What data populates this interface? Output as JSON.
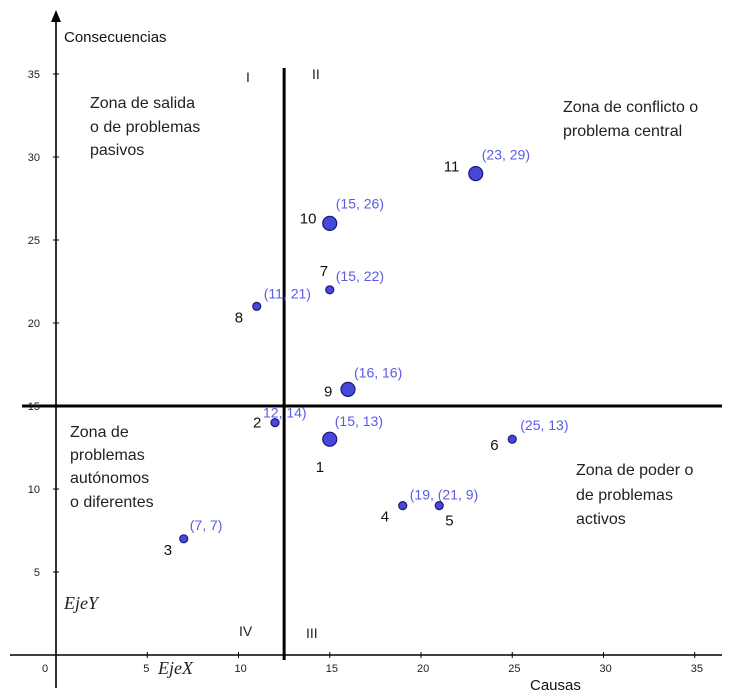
{
  "chart_data": {
    "type": "scatter",
    "title": "",
    "xlabel": "Causas",
    "ylabel": "Consecuencias",
    "xlim": [
      0,
      37.5
    ],
    "ylim": [
      0,
      37
    ],
    "x_ticks": [
      "0",
      "5",
      "10",
      "15",
      "20",
      "25",
      "30",
      "35"
    ],
    "y_ticks": [
      "5",
      "10",
      "15",
      "20",
      "25",
      "30",
      "35"
    ],
    "x_axis_name": "EjeX",
    "y_axis_name": "EjeY",
    "divider_x": 12.5,
    "divider_y": 15,
    "quadrants": [
      "I",
      "II",
      "III",
      "IV"
    ],
    "zones": [
      {
        "id": "salida",
        "lines": [
          "Zona de salida",
          "o de problemas",
          "pasivos"
        ]
      },
      {
        "id": "conflicto",
        "lines": [
          "Zona de conflicto o",
          "problema central"
        ]
      },
      {
        "id": "autonomos",
        "lines": [
          "Zona de",
          "problemas",
          "autónomos",
          "o diferentes"
        ]
      },
      {
        "id": "poder",
        "lines": [
          "Zona de poder o",
          "de problemas",
          "activos"
        ]
      }
    ],
    "points": [
      {
        "id": "1",
        "x": 15,
        "y": 13,
        "size": "large",
        "coord_label": "(15, 13)"
      },
      {
        "id": "2",
        "x": 12,
        "y": 14,
        "size": "small",
        "coord_label": "12, 14)"
      },
      {
        "id": "3",
        "x": 7,
        "y": 7,
        "size": "small",
        "coord_label": "(7, 7)"
      },
      {
        "id": "4",
        "x": 19,
        "y": 9,
        "size": "small",
        "coord_label": "(19, (21, 9)"
      },
      {
        "id": "5",
        "x": 21,
        "y": 9,
        "size": "small",
        "coord_label": ""
      },
      {
        "id": "6",
        "x": 25,
        "y": 13,
        "size": "small",
        "coord_label": "(25, 13)"
      },
      {
        "id": "7",
        "x": 15,
        "y": 22,
        "size": "small",
        "coord_label": "(15, 22)"
      },
      {
        "id": "8",
        "x": 11,
        "y": 21,
        "size": "small",
        "coord_label": "(11, 21)"
      },
      {
        "id": "9",
        "x": 16,
        "y": 16,
        "size": "large",
        "coord_label": "(16, 16)"
      },
      {
        "id": "10",
        "x": 15,
        "y": 26,
        "size": "large",
        "coord_label": "(15, 26)"
      },
      {
        "id": "11",
        "x": 23,
        "y": 29,
        "size": "large",
        "coord_label": "(23, 29)"
      }
    ],
    "colors": {
      "point_fill": "#4747d9",
      "point_stroke": "#1a1a7a",
      "coord_text": "#5a5ae8",
      "axis": "#000000"
    }
  }
}
